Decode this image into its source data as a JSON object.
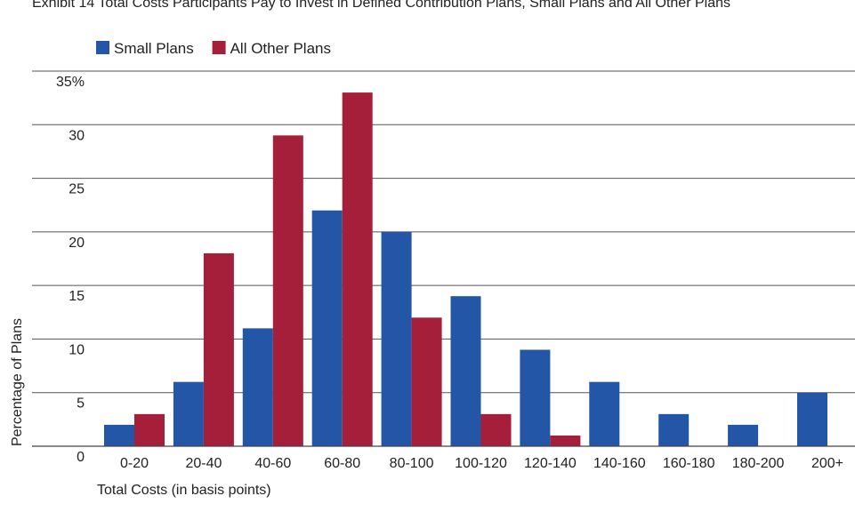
{
  "chart_data": {
    "type": "bar",
    "title": "Exhibit 14 Total Costs Participants Pay to Invest in Defined Contribution Plans, Small Plans and All Other Plans",
    "xlabel": "Total Costs (in basis points)",
    "ylabel": "Percentage of Plans",
    "ylim": [
      0,
      35
    ],
    "yticks": [
      "0",
      "5",
      "10",
      "15",
      "20",
      "25",
      "30",
      "35%"
    ],
    "grid": true,
    "legend_position": "top-left",
    "categories": [
      "0-20",
      "20-40",
      "40-60",
      "60-80",
      "80-100",
      "100-120",
      "120-140",
      "140-160",
      "160-180",
      "180-200",
      "200+"
    ],
    "series": [
      {
        "name": "Small Plans",
        "color": "#2356a6",
        "values": [
          2,
          6,
          11,
          22,
          20,
          14,
          9,
          6,
          3,
          2,
          5
        ]
      },
      {
        "name": "All Other Plans",
        "color": "#a51e3a",
        "values": [
          3,
          18,
          29,
          33,
          12,
          3,
          1,
          0,
          0,
          0,
          0
        ]
      }
    ]
  }
}
